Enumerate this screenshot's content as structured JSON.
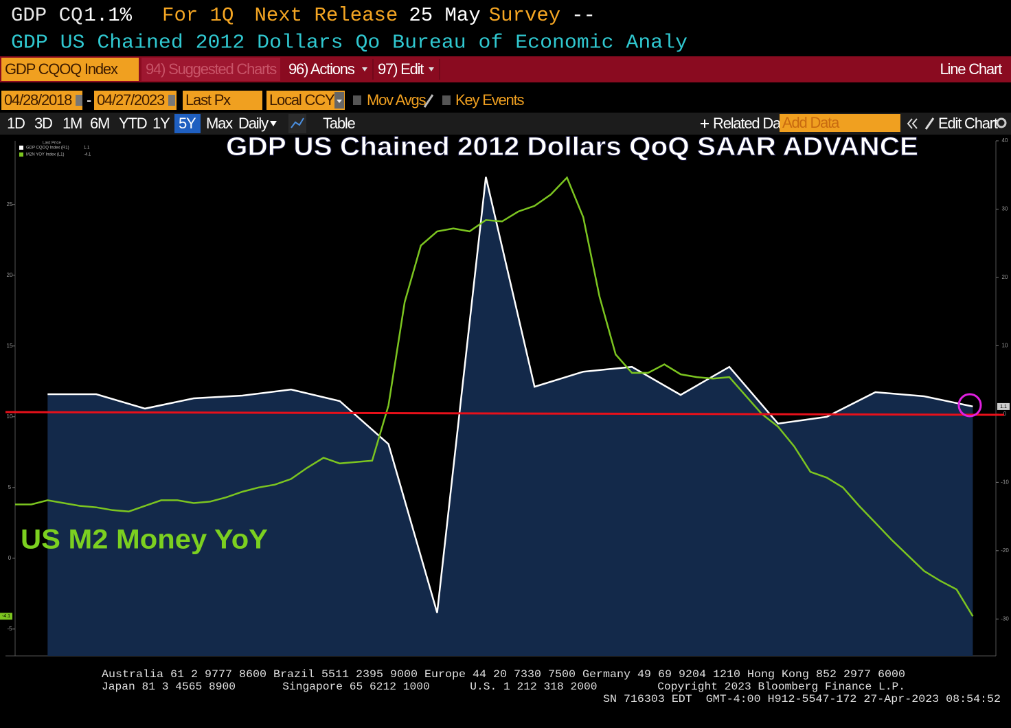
{
  "header": {
    "ticker": "GDP CQ",
    "last": "1.1%",
    "period": "For 1Q",
    "release_label": "Next Release",
    "release_date": "25 May",
    "survey_label": "Survey",
    "survey_value": "--",
    "description": "GDP US Chained 2012 Dollars Qo Bureau of Economic Analy"
  },
  "toolbar": {
    "security": "GDP CQOQ Index",
    "suggested": "94) Suggested Charts",
    "actions": "96) Actions",
    "edit": "97) Edit",
    "chart_type": "Line Chart"
  },
  "controls": {
    "start_date": "04/28/2018",
    "separator": "-",
    "end_date": "04/27/2023",
    "field": "Last Px",
    "currency": "Local CCY",
    "mov_avgs": "Mov Avgs",
    "key_events": "Key Events"
  },
  "range_bar": {
    "ranges": [
      "1D",
      "3D",
      "1M",
      "6M",
      "YTD",
      "1Y",
      "5Y",
      "Max"
    ],
    "selected": 6,
    "frequency": "Daily",
    "table": "Table",
    "related": "Related Dat",
    "add_data": "Add Data",
    "edit_chart": "Edit Chart"
  },
  "chart_data": {
    "type": "line",
    "title": "GDP US Chained 2012 Dollars QoQ SAAR ADVANCE",
    "annotation": "US M2 Money YoY",
    "legend_title": "Last Price",
    "xlim": [
      "2018-04",
      "2023-04"
    ],
    "ylim": [
      -6.9,
      29.5
    ],
    "yticks": [
      -5,
      0,
      5,
      10,
      15,
      20,
      25
    ],
    "y2lim": [
      -35.4,
      40
    ],
    "y2ticks": [
      -30,
      -20,
      -10,
      0,
      10,
      20,
      30,
      40
    ],
    "series": [
      {
        "name": "GDP CQOQ Index (R1)",
        "color": "#ffffff",
        "fill": "#13294a",
        "axis": "y2",
        "x": [
          "2018-06",
          "2018-09",
          "2018-12",
          "2019-03",
          "2019-06",
          "2019-09",
          "2019-12",
          "2020-03",
          "2020-06",
          "2020-09",
          "2020-12",
          "2021-03",
          "2021-06",
          "2021-09",
          "2021-12",
          "2022-03",
          "2022-06",
          "2022-09",
          "2022-12",
          "2023-03"
        ],
        "values": [
          2.9,
          2.9,
          0.8,
          2.3,
          2.7,
          3.6,
          1.9,
          -4.4,
          -29.1,
          34.7,
          4.0,
          6.2,
          6.9,
          2.8,
          6.9,
          -1.4,
          -0.4,
          3.2,
          2.6,
          1.1
        ]
      },
      {
        "name": "M2N YOY Index (L1)",
        "color": "#7cc520",
        "x": [
          "2018-04",
          "2018-05",
          "2018-06",
          "2018-07",
          "2018-08",
          "2018-09",
          "2018-10",
          "2018-11",
          "2018-12",
          "2019-01",
          "2019-02",
          "2019-03",
          "2019-04",
          "2019-05",
          "2019-06",
          "2019-07",
          "2019-08",
          "2019-09",
          "2019-10",
          "2019-11",
          "2019-12",
          "2020-01",
          "2020-02",
          "2020-03",
          "2020-04",
          "2020-05",
          "2020-06",
          "2020-07",
          "2020-08",
          "2020-09",
          "2020-10",
          "2020-11",
          "2020-12",
          "2021-01",
          "2021-02",
          "2021-03",
          "2021-04",
          "2021-05",
          "2021-06",
          "2021-07",
          "2021-08",
          "2021-09",
          "2021-10",
          "2021-11",
          "2021-12",
          "2022-01",
          "2022-02",
          "2022-03",
          "2022-04",
          "2022-05",
          "2022-06",
          "2022-07",
          "2022-08",
          "2022-09",
          "2022-10",
          "2022-11",
          "2022-12",
          "2023-01",
          "2023-02",
          "2023-03"
        ],
        "values": [
          3.8,
          3.8,
          4.1,
          3.9,
          3.7,
          3.6,
          3.4,
          3.3,
          3.7,
          4.1,
          4.1,
          3.9,
          4.0,
          4.3,
          4.7,
          5.0,
          5.2,
          5.6,
          6.4,
          7.1,
          6.7,
          6.8,
          6.9,
          10.8,
          18.1,
          22.1,
          23.1,
          23.3,
          23.1,
          23.9,
          23.8,
          24.5,
          24.9,
          25.7,
          26.9,
          24.1,
          18.5,
          14.4,
          13.1,
          13.1,
          13.7,
          13.0,
          12.8,
          12.7,
          12.8,
          11.5,
          10.2,
          9.3,
          7.9,
          6.1,
          5.7,
          5.0,
          3.7,
          2.5,
          1.3,
          0.2,
          -0.9,
          -1.6,
          -2.2,
          -4.1
        ]
      }
    ]
  },
  "footer": [
    "Australia 61 2 9777 8600 Brazil 5511 2395 9000 Europe 44 20 7330 7500 Germany 49 69 9204 1210 Hong Kong 852 2977 6000",
    "Japan 81 3 4565 8900       Singapore 65 6212 1000      U.S. 1 212 318 2000         Copyright 2023 Bloomberg Finance L.P.",
    "SN 716303 EDT  GMT-4:00 H912-5547-172 27-Apr-2023 08:54:52"
  ]
}
